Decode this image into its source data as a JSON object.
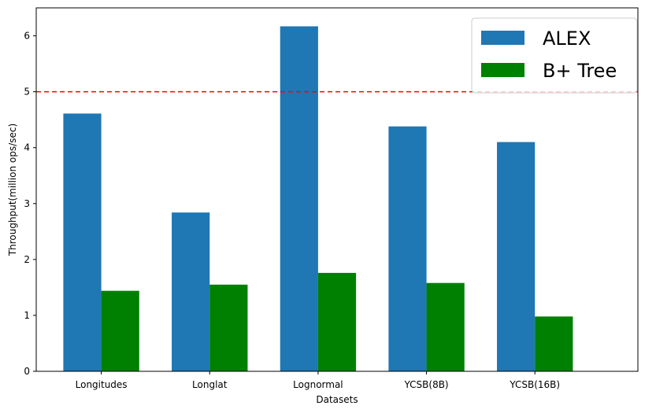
{
  "chart_data": {
    "type": "bar",
    "xlabel": "Datasets",
    "ylabel": "Throughput(million ops/sec)",
    "categories": [
      "Longitudes",
      "Longlat",
      "Lognormal",
      "YCSB(8B)",
      "YCSB(16B)"
    ],
    "series": [
      {
        "name": "ALEX",
        "values": [
          4.61,
          2.84,
          6.17,
          4.38,
          4.1
        ],
        "color": "#1f77b4"
      },
      {
        "name": "B+ Tree",
        "values": [
          1.44,
          1.55,
          1.76,
          1.58,
          0.98
        ],
        "color": "#008000"
      }
    ],
    "ylim": [
      0,
      6.5
    ],
    "yticks": [
      "0",
      "1",
      "2",
      "3",
      "4",
      "5",
      "6"
    ],
    "reference_line": {
      "y": 5,
      "color": "#ff0000",
      "style": "dashed"
    },
    "legend": "top-right",
    "grid": false
  }
}
